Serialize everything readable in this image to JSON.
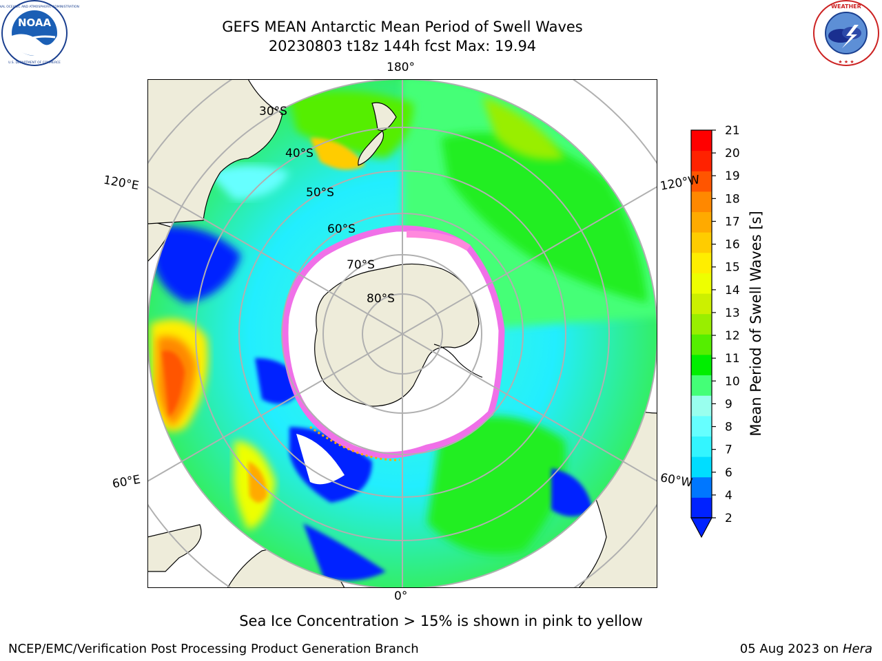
{
  "title": {
    "line1": "GEFS MEAN Antarctic Mean Period of Swell Waves",
    "line2": "20230803 t18z 144h fcst   Max: 19.94"
  },
  "logos": {
    "left": {
      "text": "NOAA",
      "ring_text": "NATIONAL OCEANIC AND ATMOSPHERIC ADMINISTRATION · U.S. DEPARTMENT OF COMMERCE"
    },
    "right": {
      "ring_text": "NATIONAL WEATHER SERVICE"
    }
  },
  "map": {
    "longitude_labels": {
      "top": "180°",
      "left_upper": "120°E",
      "right_upper": "120°W",
      "left_lower": "60°E",
      "right_lower": "60°W",
      "bottom": "0°"
    },
    "latitude_labels": [
      "30°S",
      "40°S",
      "50°S",
      "60°S",
      "70°S",
      "80°S"
    ],
    "colors": {
      "land": "#eeecda",
      "ice_free_white": "#ffffff",
      "sea_ice_edge": "#f070e8",
      "graticule": "#b0b0b0"
    }
  },
  "colorbar": {
    "label": "Mean Period of Swell Waves [s]",
    "ticks": [
      "2",
      "4",
      "6",
      "7",
      "8",
      "9",
      "10",
      "11",
      "12",
      "13",
      "14",
      "15",
      "16",
      "17",
      "18",
      "19",
      "20",
      "21"
    ],
    "colors": [
      "#0022ff",
      "#0077ff",
      "#00ddff",
      "#33f5ff",
      "#66ffff",
      "#99ffee",
      "#44ff77",
      "#00ee00",
      "#55ee00",
      "#99ee00",
      "#ccf000",
      "#eeff00",
      "#ffee00",
      "#ffcc00",
      "#ffaa00",
      "#ff8800",
      "#ff5500",
      "#ff2200",
      "#ff0000"
    ],
    "under_color": "#0022ff"
  },
  "footer": {
    "note": "Sea Ice Concentration > 15% is shown in pink to yellow",
    "credit": "NCEP/EMC/Verification Post Processing Product Generation Branch",
    "date": "05 Aug 2023 on",
    "machine": "Hera"
  }
}
